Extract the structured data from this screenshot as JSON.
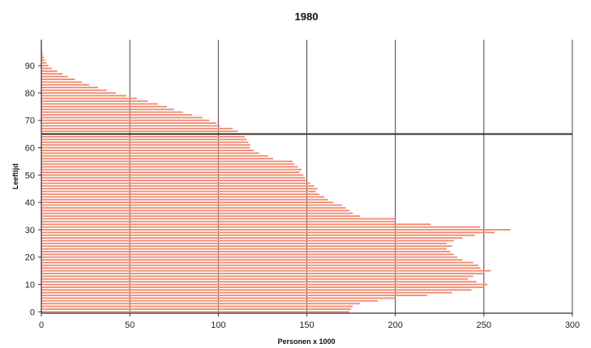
{
  "chart_data": {
    "type": "bar",
    "orientation": "horizontal",
    "title": "1980",
    "xlabel": "Personen x 1000",
    "ylabel": "Leeftijd",
    "xlim": [
      0,
      300
    ],
    "ylim": [
      0,
      99
    ],
    "x_ticks": [
      0,
      50,
      100,
      150,
      200,
      250,
      300
    ],
    "y_ticks": [
      0,
      10,
      20,
      30,
      40,
      50,
      60,
      70,
      80,
      90
    ],
    "grid": "vertical",
    "legend": "none",
    "bar_color": "#f08c72",
    "reference_line": {
      "age": 65,
      "color": "#333333"
    },
    "ages": [
      0,
      1,
      2,
      3,
      4,
      5,
      6,
      7,
      8,
      9,
      10,
      11,
      12,
      13,
      14,
      15,
      16,
      17,
      18,
      19,
      20,
      21,
      22,
      23,
      24,
      25,
      26,
      27,
      28,
      29,
      30,
      31,
      32,
      33,
      34,
      35,
      36,
      37,
      38,
      39,
      40,
      41,
      42,
      43,
      44,
      45,
      46,
      47,
      48,
      49,
      50,
      51,
      52,
      53,
      54,
      55,
      56,
      57,
      58,
      59,
      60,
      61,
      62,
      63,
      64,
      65,
      66,
      67,
      68,
      69,
      70,
      71,
      72,
      73,
      74,
      75,
      76,
      77,
      78,
      79,
      80,
      81,
      82,
      83,
      84,
      85,
      86,
      87,
      88,
      89,
      90,
      91,
      92,
      93,
      94,
      95,
      96,
      97,
      98,
      99
    ],
    "values": [
      174,
      175,
      176,
      180,
      190,
      200,
      218,
      232,
      243,
      250,
      252,
      246,
      241,
      244,
      250,
      254,
      248,
      247,
      244,
      238,
      235,
      233,
      231,
      229,
      232,
      229,
      233,
      238,
      245,
      256,
      265,
      248,
      220,
      200,
      200,
      180,
      176,
      174,
      172,
      170,
      165,
      162,
      160,
      157,
      155,
      156,
      154,
      152,
      150,
      149,
      148,
      146,
      147,
      145,
      143,
      142,
      131,
      128,
      123,
      120,
      118,
      118,
      117,
      116,
      115,
      113,
      111,
      108,
      101,
      99,
      95,
      91,
      85,
      80,
      75,
      71,
      66,
      60,
      54,
      48,
      42,
      37,
      32,
      27,
      23,
      19,
      15,
      12,
      9,
      6,
      4,
      3,
      2,
      1.5,
      1,
      0.6,
      0.4,
      0.2,
      0.1,
      0.05
    ]
  }
}
